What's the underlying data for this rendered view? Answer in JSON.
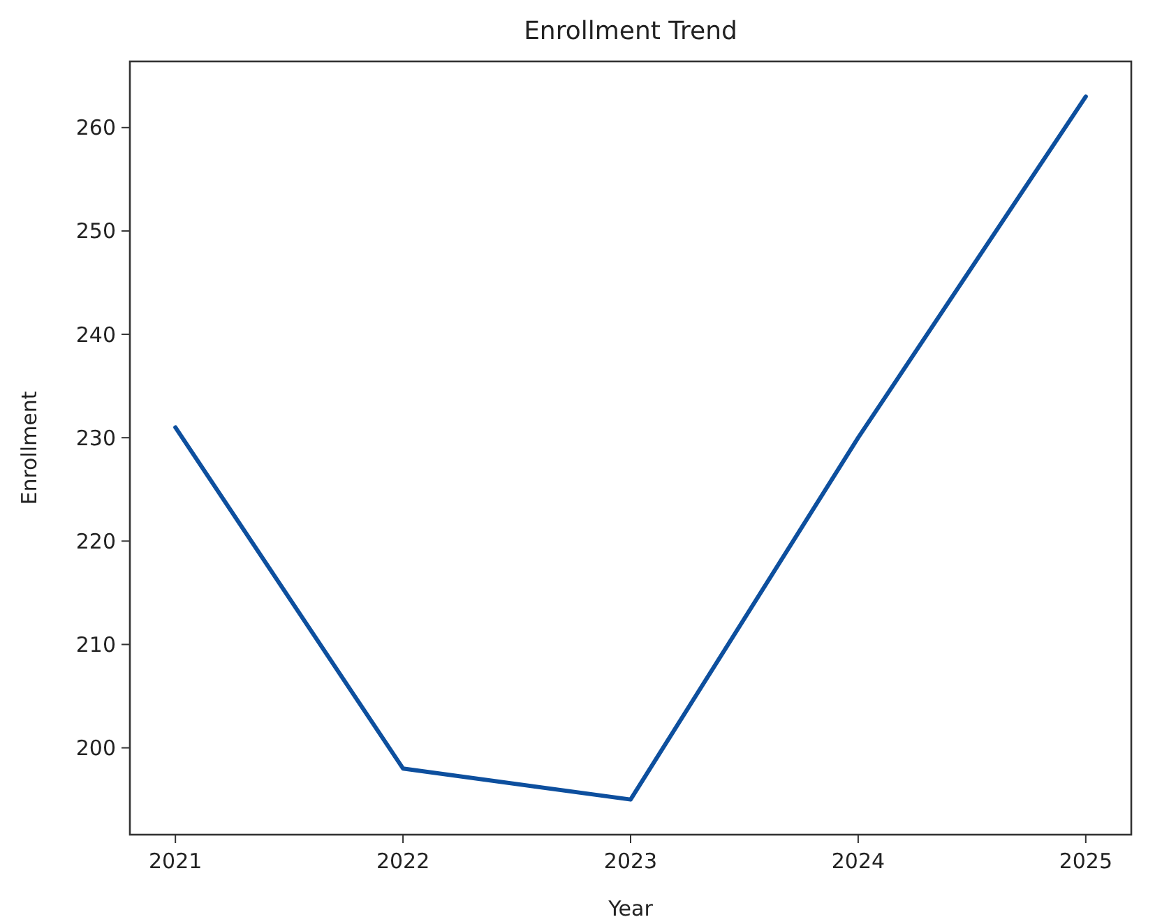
{
  "chart_data": {
    "type": "line",
    "title": "Enrollment Trend",
    "xlabel": "Year",
    "ylabel": "Enrollment",
    "x": [
      2021,
      2022,
      2023,
      2024,
      2025
    ],
    "series": [
      {
        "color": "#0d4f9e",
        "values": [
          231,
          198,
          195,
          230,
          263
        ]
      }
    ],
    "xlim": [
      2020.8,
      2025.2
    ],
    "xticks": [
      2021,
      2022,
      2023,
      2024,
      2025
    ],
    "ylim": [
      191.6,
      266.4
    ],
    "yticks": [
      200,
      210,
      220,
      230,
      240,
      250,
      260
    ],
    "grid": false
  }
}
